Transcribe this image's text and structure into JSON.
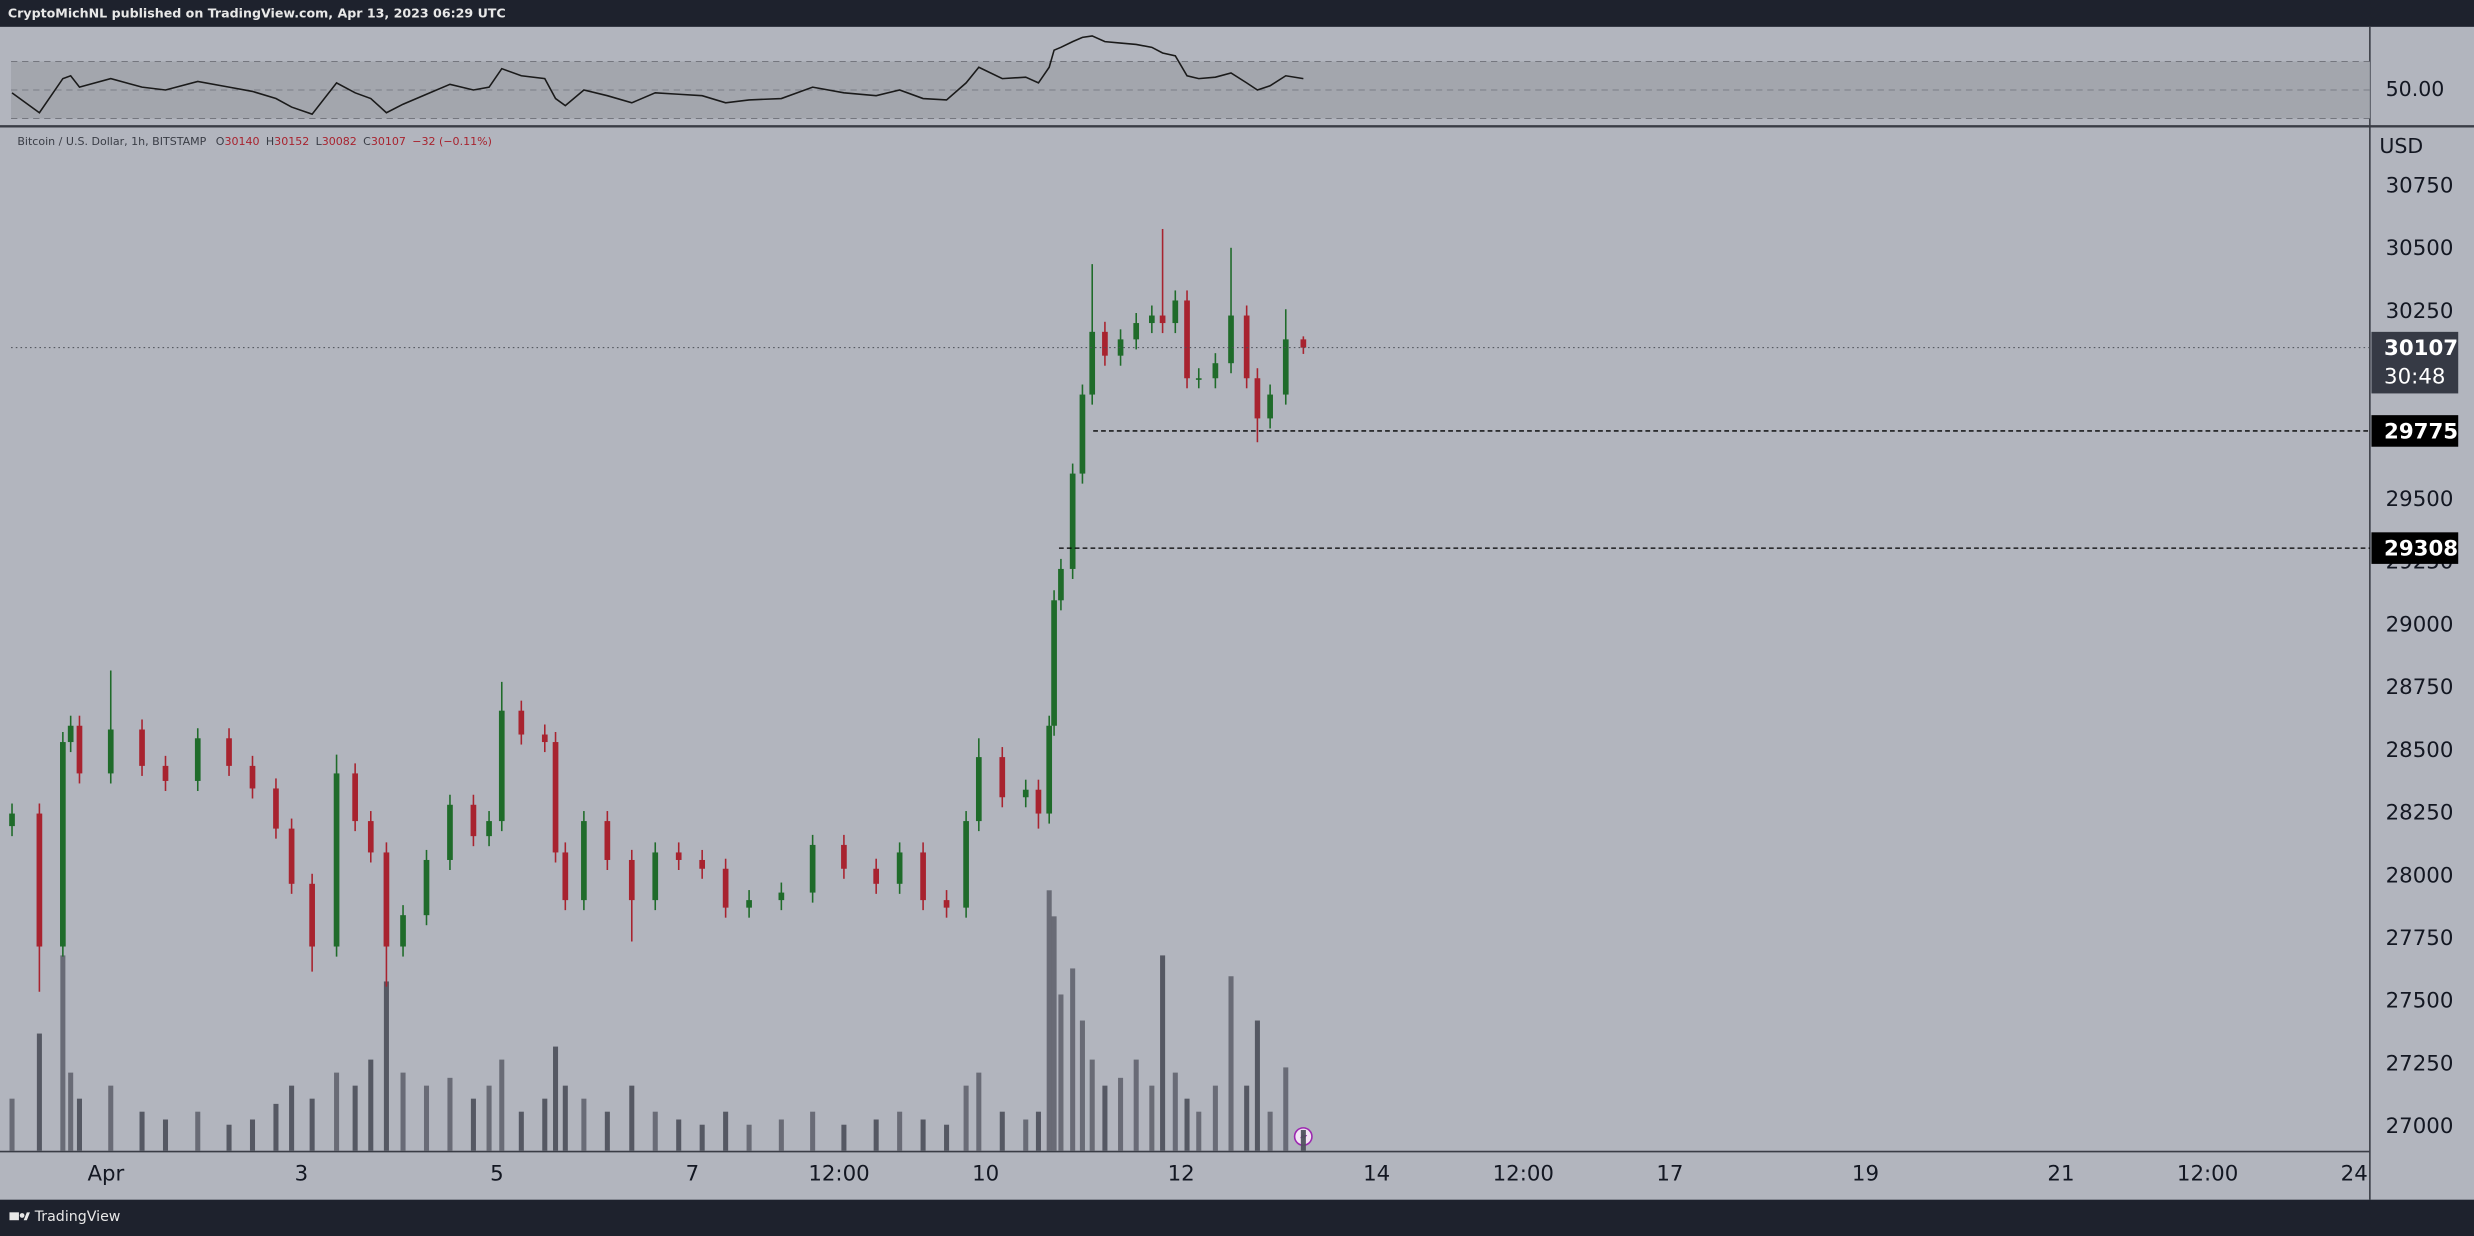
{
  "header": {
    "publisher": "CryptoMichNL published on TradingView.com, Apr 13, 2023 06:29 UTC"
  },
  "footer": {
    "brand": "TradingView"
  },
  "chart_data": {
    "type": "candlestick",
    "legend": {
      "symbol": "Bitcoin / U.S. Dollar, 1h, BITSTAMP",
      "fields": [
        {
          "label": "O",
          "value": 30140
        },
        {
          "label": "H",
          "value": 30152
        },
        {
          "label": "L",
          "value": 30082
        },
        {
          "label": "C",
          "value": 30107
        }
      ],
      "change": "−32 (−0.11%)"
    },
    "currency": "USD",
    "x": [
      -0.96,
      -0.68,
      -0.44,
      -0.36,
      -0.27,
      0.05,
      0.37,
      0.61,
      0.94,
      1.26,
      1.5,
      1.74,
      1.9,
      2.11,
      2.36,
      2.55,
      2.71,
      2.87,
      3.04,
      3.28,
      3.52,
      3.76,
      3.92,
      4.05,
      4.25,
      4.49,
      4.6,
      4.7,
      4.89,
      5.13,
      5.38,
      5.62,
      5.86,
      6.1,
      6.34,
      6.58,
      6.91,
      7.23,
      7.55,
      7.88,
      8.12,
      8.36,
      8.6,
      8.8,
      8.93,
      9.17,
      9.41,
      9.54,
      9.65,
      9.7,
      9.77,
      9.89,
      9.99,
      10.09,
      10.22,
      10.38,
      10.54,
      10.7,
      10.81,
      10.94,
      11.06,
      11.18,
      11.35,
      11.51,
      11.67,
      11.78,
      11.91,
      12.07,
      12.25
    ],
    "open": [
      28200,
      28250,
      27720,
      28535,
      28600,
      28410,
      28585,
      28440,
      28380,
      28550,
      28440,
      28350,
      28190,
      27970,
      27720,
      28410,
      28220,
      28095,
      27720,
      27845,
      28065,
      28285,
      28160,
      28220,
      28660,
      28565,
      28535,
      28095,
      27905,
      28220,
      28065,
      27905,
      28095,
      28065,
      28030,
      27875,
      27905,
      27935,
      28125,
      28030,
      27970,
      28095,
      27905,
      27875,
      28220,
      28475,
      28315,
      28345,
      28250,
      28600,
      29100,
      29225,
      29605,
      29920,
      30170,
      30075,
      30140,
      30205,
      30235,
      30205,
      30295,
      29985,
      29985,
      30045,
      30235,
      29985,
      29825,
      29920,
      30140
    ],
    "high": [
      28290,
      28290,
      28575,
      28640,
      28640,
      28820,
      28625,
      28480,
      28590,
      28590,
      28480,
      28390,
      28230,
      28010,
      28485,
      28450,
      28260,
      28135,
      27885,
      28105,
      28325,
      28325,
      28260,
      28775,
      28700,
      28605,
      28575,
      28135,
      28260,
      28260,
      28105,
      28135,
      28135,
      28105,
      28070,
      27945,
      27975,
      28165,
      28165,
      28070,
      28135,
      28135,
      27945,
      28260,
      28550,
      28515,
      28385,
      28385,
      28640,
      29140,
      29265,
      29645,
      29960,
      30440,
      30210,
      30180,
      30245,
      30275,
      30580,
      30335,
      30335,
      30025,
      30085,
      30505,
      30275,
      30025,
      29960,
      30260,
      30152
    ],
    "low": [
      28160,
      27540,
      27680,
      28495,
      28370,
      28370,
      28400,
      28340,
      28340,
      28400,
      28310,
      28150,
      27930,
      27620,
      27680,
      28180,
      28055,
      27560,
      27680,
      27805,
      28025,
      28120,
      28120,
      28180,
      28525,
      28495,
      28055,
      27865,
      27865,
      28025,
      27740,
      27865,
      28025,
      27990,
      27835,
      27835,
      27865,
      27895,
      27990,
      27930,
      27930,
      27865,
      27835,
      27835,
      28180,
      28275,
      28275,
      28190,
      28210,
      28560,
      29060,
      29185,
      29565,
      29880,
      30035,
      30035,
      30100,
      30165,
      30165,
      30165,
      29945,
      29945,
      29945,
      30005,
      29945,
      29730,
      29785,
      29880,
      30082
    ],
    "close": [
      28250,
      27720,
      28535,
      28600,
      28410,
      28585,
      28440,
      28380,
      28550,
      28440,
      28350,
      28190,
      27970,
      27720,
      28410,
      28220,
      28095,
      27720,
      27845,
      28065,
      28285,
      28160,
      28220,
      28660,
      28565,
      28535,
      28095,
      27905,
      28220,
      28065,
      27905,
      28095,
      28065,
      28030,
      27875,
      27905,
      27935,
      28125,
      28030,
      27970,
      28095,
      27905,
      27875,
      28220,
      28475,
      28315,
      28345,
      28250,
      28600,
      29100,
      29225,
      29605,
      29920,
      30170,
      30075,
      30140,
      30205,
      30235,
      30205,
      30295,
      29985,
      29985,
      30045,
      30235,
      29985,
      29825,
      29920,
      30140,
      30107
    ],
    "volume": [
      20,
      45,
      75,
      30,
      20,
      25,
      15,
      12,
      15,
      10,
      12,
      18,
      25,
      20,
      30,
      25,
      35,
      65,
      30,
      25,
      28,
      20,
      25,
      35,
      15,
      20,
      40,
      25,
      20,
      15,
      25,
      15,
      12,
      10,
      15,
      10,
      12,
      15,
      10,
      12,
      15,
      12,
      10,
      25,
      30,
      15,
      12,
      15,
      100,
      90,
      60,
      70,
      50,
      35,
      25,
      28,
      35,
      25,
      75,
      30,
      20,
      15,
      25,
      67,
      25,
      50,
      15,
      32,
      8
    ],
    "volume_ylim": [
      0,
      100
    ],
    "up_color": "#1f6b2a",
    "down_color": "#a8232f",
    "volume_color": "#50535e",
    "xlim": [
      -0.97,
      23.16
    ],
    "xticks": [
      {
        "value": 0,
        "label": "Apr"
      },
      {
        "value": 2,
        "label": "3"
      },
      {
        "value": 4,
        "label": "5"
      },
      {
        "value": 6,
        "label": "7"
      },
      {
        "value": 7.5,
        "label": "12:00"
      },
      {
        "value": 9,
        "label": "10"
      },
      {
        "value": 11,
        "label": "12"
      },
      {
        "value": 13,
        "label": "14"
      },
      {
        "value": 14.5,
        "label": "12:00"
      },
      {
        "value": 16,
        "label": "17"
      },
      {
        "value": 18,
        "label": "19"
      },
      {
        "value": 20,
        "label": "21"
      },
      {
        "value": 21.5,
        "label": "12:00"
      },
      {
        "value": 23,
        "label": "24"
      }
    ],
    "ylim": [
      26906,
      30983
    ],
    "yticks": [
      27000,
      27250,
      27500,
      27750,
      28000,
      28250,
      28500,
      28750,
      29000,
      29250,
      29500,
      29750,
      30000,
      30250,
      30500,
      30750
    ],
    "last_price": {
      "value": 30107,
      "countdown": "30:48"
    },
    "levels": [
      {
        "value": 29775,
        "from": 10.1
      },
      {
        "value": 29308,
        "from": 9.75
      }
    ],
    "rsi": {
      "values": [
        48,
        34,
        58,
        60,
        52,
        58,
        52,
        50,
        56,
        52,
        49,
        44,
        38,
        33,
        55,
        48,
        44,
        34,
        40,
        47,
        54,
        50,
        52,
        65,
        60,
        58,
        44,
        39,
        50,
        46,
        41,
        48,
        47,
        46,
        41,
        43,
        44,
        52,
        48,
        46,
        50,
        44,
        43,
        55,
        66,
        58,
        59,
        55,
        66,
        78,
        80,
        84,
        87,
        88,
        84,
        83,
        82,
        80,
        76,
        74,
        60,
        58,
        59,
        62,
        55,
        50,
        53,
        60,
        58
      ],
      "color": "#1a1a1a",
      "ylim": [
        25.6,
        94.4
      ],
      "yticks": [
        {
          "value": 50,
          "label": "50.00"
        }
      ],
      "band": [
        30,
        70
      ]
    }
  }
}
